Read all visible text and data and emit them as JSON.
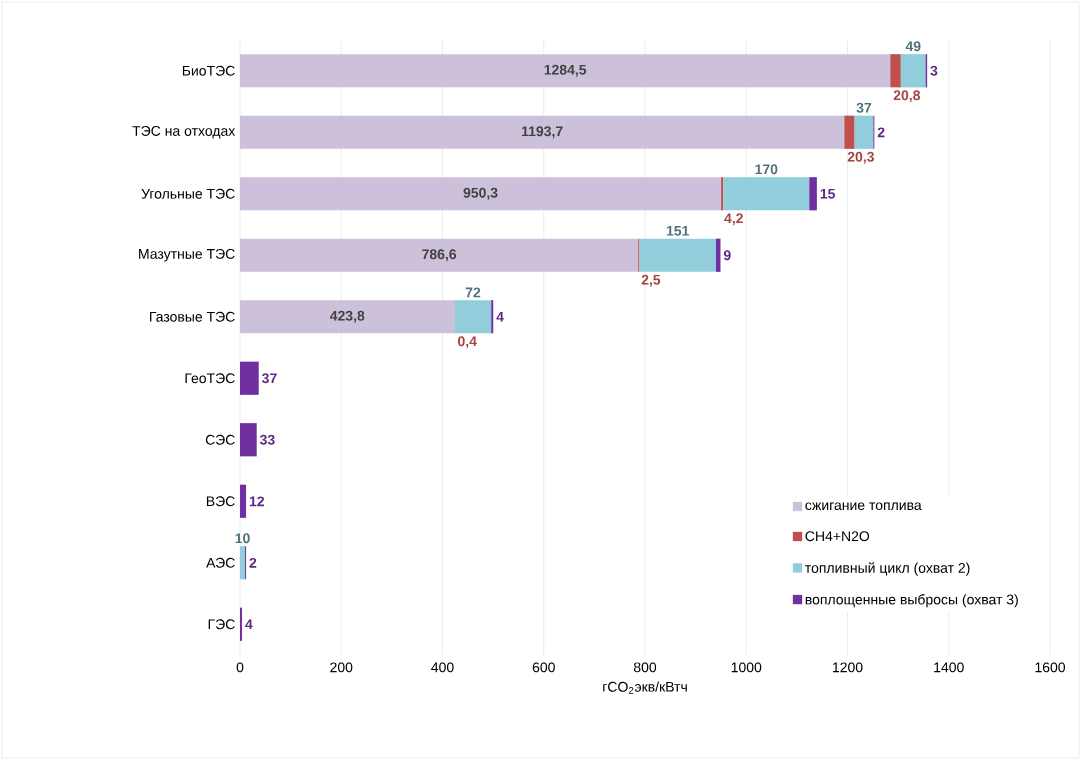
{
  "chart_data": {
    "type": "bar",
    "orientation": "horizontal",
    "stacked": true,
    "categories": [
      "БиоТЭС",
      "ТЭС на отходах",
      "Угольные ТЭС",
      "Мазутные ТЭС",
      "Газовые ТЭС",
      "ГеоТЭС",
      "СЭС",
      "ВЭС",
      "АЭС",
      "ГЭС"
    ],
    "series": [
      {
        "name": "сжигание топлива",
        "color": "#ccc0da",
        "values": [
          1284.5,
          1193.7,
          950.3,
          786.6,
          423.8,
          null,
          null,
          null,
          null,
          null
        ],
        "value_labels": [
          "1284,5",
          "1193,7",
          "950,3",
          "786,6",
          "423,8",
          null,
          null,
          null,
          null,
          null
        ]
      },
      {
        "name": "CH4+N2O",
        "color": "#c0504d",
        "values": [
          20.8,
          20.3,
          4.2,
          2.5,
          0.4,
          null,
          null,
          null,
          null,
          null
        ],
        "value_labels": [
          "20,8",
          "20,3",
          "4,2",
          "2,5",
          "0,4",
          null,
          null,
          null,
          null,
          null
        ]
      },
      {
        "name": "топливный цикл (охват 2)",
        "color": "#92cddc",
        "values": [
          49,
          37,
          170,
          151,
          72,
          null,
          null,
          null,
          10,
          null
        ],
        "value_labels": [
          "49",
          "37",
          "170",
          "151",
          "72",
          null,
          null,
          null,
          "10",
          null
        ]
      },
      {
        "name": "воплощенные выбросы (охват 3)",
        "color": "#7030a0",
        "values": [
          3,
          2,
          15,
          9,
          4,
          37,
          33,
          12,
          2,
          4
        ],
        "value_labels": [
          "3",
          "2",
          "15",
          "9",
          "4",
          "37",
          "33",
          "12",
          "2",
          "4"
        ]
      }
    ],
    "xlabel": "гCO$_{2}$экв/кВтч",
    "xlim": [
      0,
      1600
    ],
    "xticks": [
      0,
      200,
      400,
      600,
      800,
      1000,
      1200,
      1400,
      1600
    ],
    "grid": "x",
    "legend": "bottom right"
  }
}
